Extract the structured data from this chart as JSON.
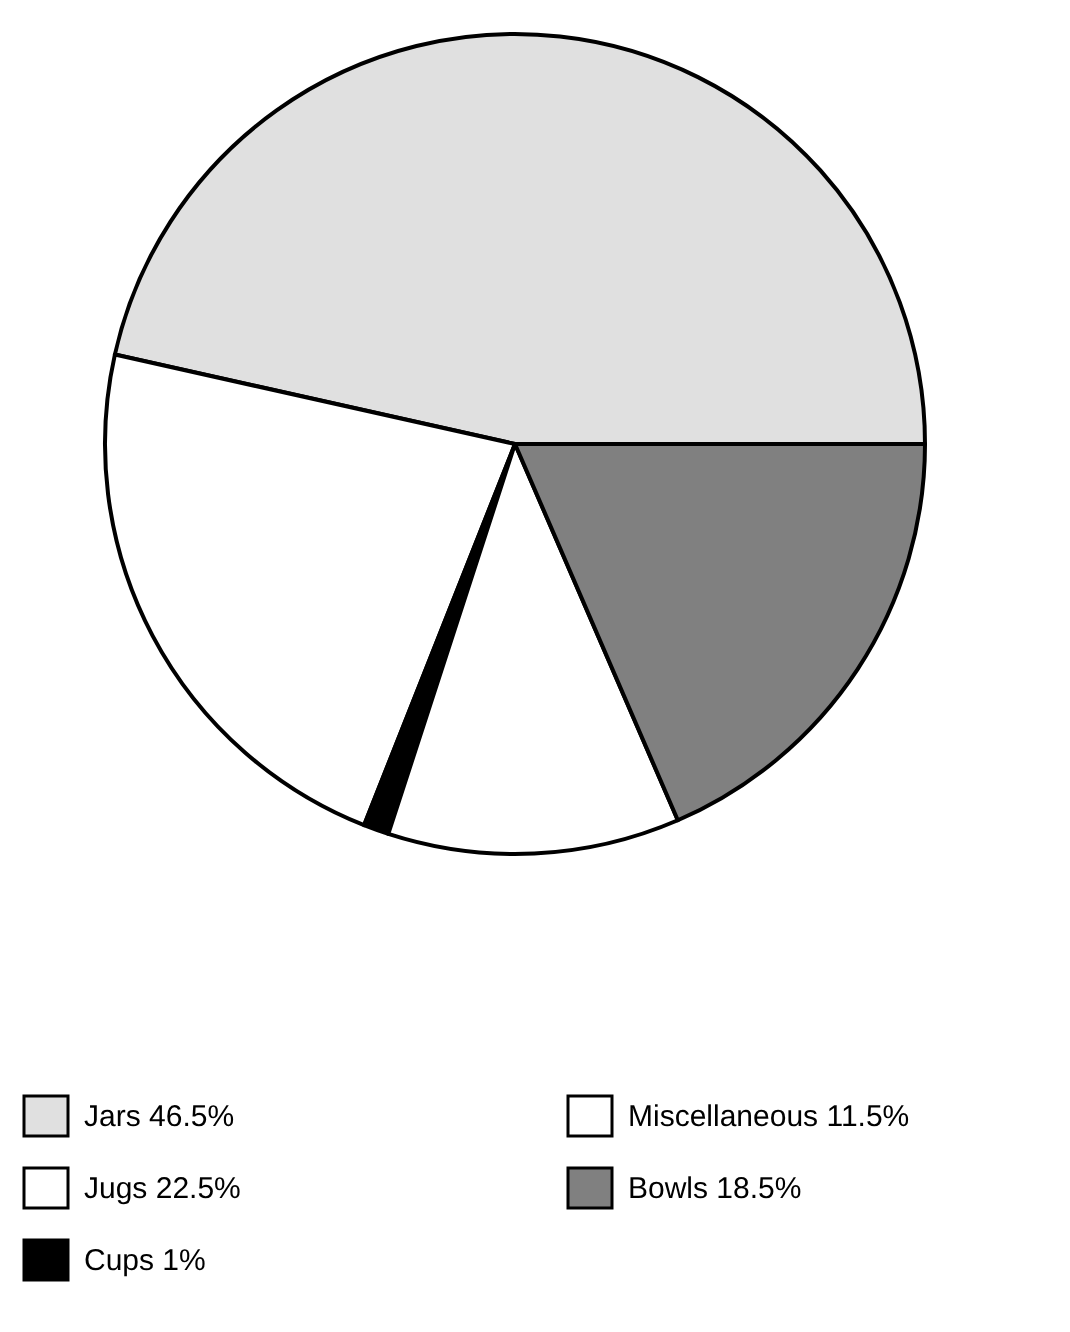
{
  "chart_data": {
    "type": "pie",
    "categories": [
      "Jars",
      "Jugs",
      "Cups",
      "Miscellaneous",
      "Bowls"
    ],
    "values": [
      46.5,
      22.5,
      1,
      11.5,
      18.5
    ],
    "value_labels": [
      "46.5%",
      "22.5%",
      "1%",
      "11.5%",
      "18.5%"
    ],
    "colors": [
      "#e0e0e0",
      "#ffffff",
      "#000000",
      "#ffffff",
      "#808080"
    ],
    "legend": "bottom"
  }
}
